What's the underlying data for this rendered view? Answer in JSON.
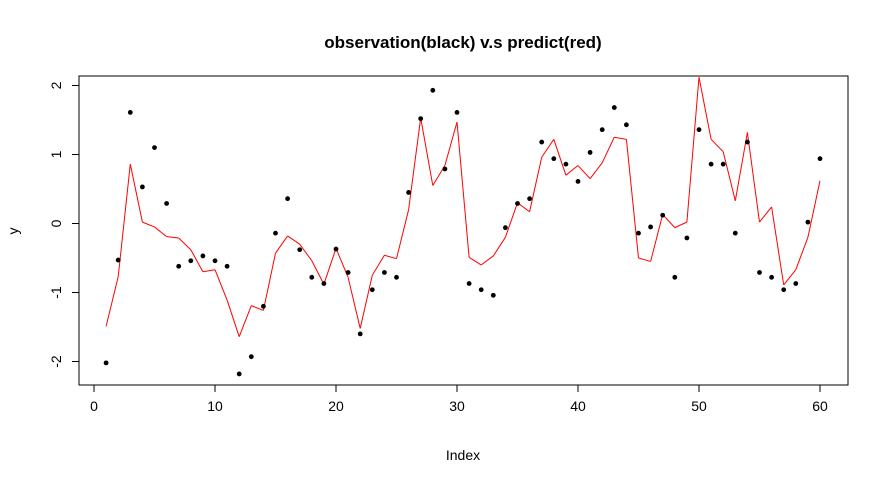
{
  "chart_data": {
    "type": "line",
    "title": "observation(black) v.s predict(red)",
    "xlabel": "Index",
    "ylabel": "y",
    "xlim": [
      1,
      60
    ],
    "ylim": [
      -2.2,
      2.1
    ],
    "x_ticks": [
      0,
      10,
      20,
      30,
      40,
      50,
      60
    ],
    "y_ticks": [
      -2,
      -1,
      0,
      1,
      2
    ],
    "x_tick_labels": [
      "0",
      "10",
      "20",
      "30",
      "40",
      "50",
      "60"
    ],
    "y_tick_labels": [
      "-2",
      "-1",
      "0",
      "1",
      "2"
    ],
    "grid": false,
    "colors": {
      "observation": "#000000",
      "predict": "#ff0000"
    },
    "series": [
      {
        "style": "points",
        "x": [
          1,
          2,
          3,
          4,
          5,
          6,
          7,
          8,
          9,
          10,
          11,
          12,
          13,
          14,
          15,
          16,
          17,
          18,
          19,
          20,
          21,
          22,
          23,
          24,
          25,
          26,
          27,
          28,
          29,
          30,
          31,
          32,
          33,
          34,
          35,
          36,
          37,
          38,
          39,
          40,
          41,
          42,
          43,
          44,
          45,
          46,
          47,
          48,
          49,
          50,
          51,
          52,
          53,
          54,
          55,
          56,
          57,
          58,
          59,
          60
        ],
        "values": [
          -2.02,
          -0.53,
          1.61,
          0.53,
          1.1,
          0.29,
          -0.62,
          -0.54,
          -0.47,
          -0.54,
          -0.62,
          -2.18,
          -1.93,
          -1.2,
          -0.14,
          0.36,
          -0.38,
          -0.78,
          -0.87,
          -0.37,
          -0.71,
          -1.6,
          -0.96,
          -0.71,
          -0.78,
          0.45,
          1.52,
          1.93,
          0.79,
          1.61,
          -0.87,
          -0.96,
          -1.04,
          -0.06,
          0.29,
          0.36,
          1.18,
          0.94,
          0.86,
          0.61,
          1.03,
          1.36,
          1.68,
          1.43,
          -0.14,
          -0.05,
          0.12,
          -0.78,
          -0.21,
          1.36,
          0.86,
          0.86,
          -0.14,
          1.18,
          -0.71,
          -0.78,
          -0.96,
          -0.87,
          0.02,
          0.94
        ]
      },
      {
        "style": "line",
        "x": [
          1,
          2,
          3,
          4,
          5,
          6,
          7,
          8,
          9,
          10,
          11,
          12,
          13,
          14,
          15,
          16,
          17,
          18,
          19,
          20,
          21,
          22,
          23,
          24,
          25,
          26,
          27,
          28,
          29,
          30,
          31,
          32,
          33,
          34,
          35,
          36,
          37,
          38,
          39,
          40,
          41,
          42,
          43,
          44,
          45,
          46,
          47,
          48,
          49,
          50,
          51,
          52,
          53,
          54,
          55,
          56,
          57,
          58,
          59,
          60
        ],
        "values": [
          -1.49,
          -0.77,
          0.86,
          0.02,
          -0.05,
          -0.19,
          -0.21,
          -0.38,
          -0.7,
          -0.67,
          -1.11,
          -1.64,
          -1.19,
          -1.26,
          -0.43,
          -0.18,
          -0.3,
          -0.54,
          -0.88,
          -0.36,
          -0.78,
          -1.52,
          -0.75,
          -0.46,
          -0.51,
          0.2,
          1.53,
          0.55,
          0.84,
          1.47,
          -0.49,
          -0.6,
          -0.47,
          -0.2,
          0.3,
          0.17,
          0.96,
          1.22,
          0.7,
          0.84,
          0.65,
          0.88,
          1.25,
          1.22,
          -0.5,
          -0.55,
          0.13,
          -0.06,
          0.02,
          2.12,
          1.22,
          1.04,
          0.33,
          1.32,
          0.02,
          0.24,
          -0.89,
          -0.67,
          -0.2,
          0.62
        ]
      }
    ]
  }
}
